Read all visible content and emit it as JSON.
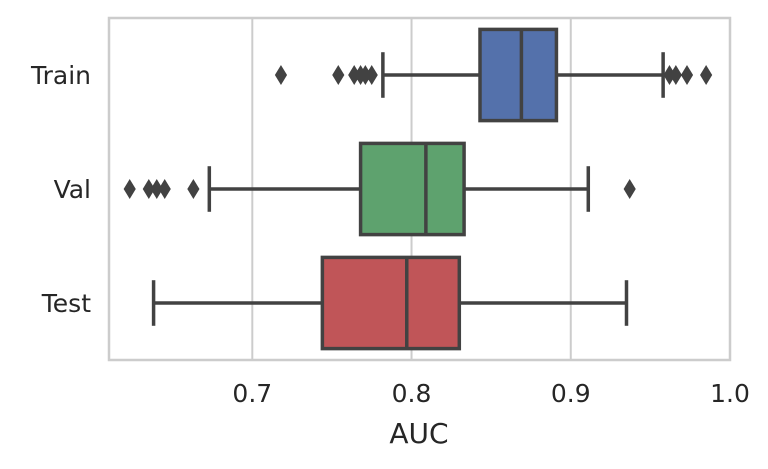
{
  "chart_data": {
    "type": "boxplot",
    "orientation": "horizontal",
    "title": "",
    "xlabel": "AUC",
    "ylabel": "",
    "xlim": [
      0.61,
      1.0
    ],
    "xticks": [
      0.7,
      0.8,
      0.9,
      1.0
    ],
    "xtick_labels": [
      "0.7",
      "0.8",
      "0.9",
      "1.0"
    ],
    "grid": true,
    "legend": "none",
    "categories": [
      "Train",
      "Val",
      "Test"
    ],
    "series": [
      {
        "category": "Train",
        "color": "#5471ab",
        "whisker_low": 0.782,
        "q1": 0.843,
        "median": 0.869,
        "q3": 0.891,
        "whisker_high": 0.958,
        "outliers": [
          0.718,
          0.754,
          0.764,
          0.768,
          0.771,
          0.775,
          0.962,
          0.966,
          0.973,
          0.985
        ]
      },
      {
        "category": "Val",
        "color": "#5ea26e",
        "whisker_low": 0.673,
        "q1": 0.768,
        "median": 0.809,
        "q3": 0.833,
        "whisker_high": 0.911,
        "outliers": [
          0.623,
          0.635,
          0.64,
          0.645,
          0.663,
          0.937
        ]
      },
      {
        "category": "Test",
        "color": "#c05558",
        "whisker_low": 0.638,
        "q1": 0.744,
        "median": 0.797,
        "q3": 0.83,
        "whisker_high": 0.935,
        "outliers": []
      }
    ]
  }
}
